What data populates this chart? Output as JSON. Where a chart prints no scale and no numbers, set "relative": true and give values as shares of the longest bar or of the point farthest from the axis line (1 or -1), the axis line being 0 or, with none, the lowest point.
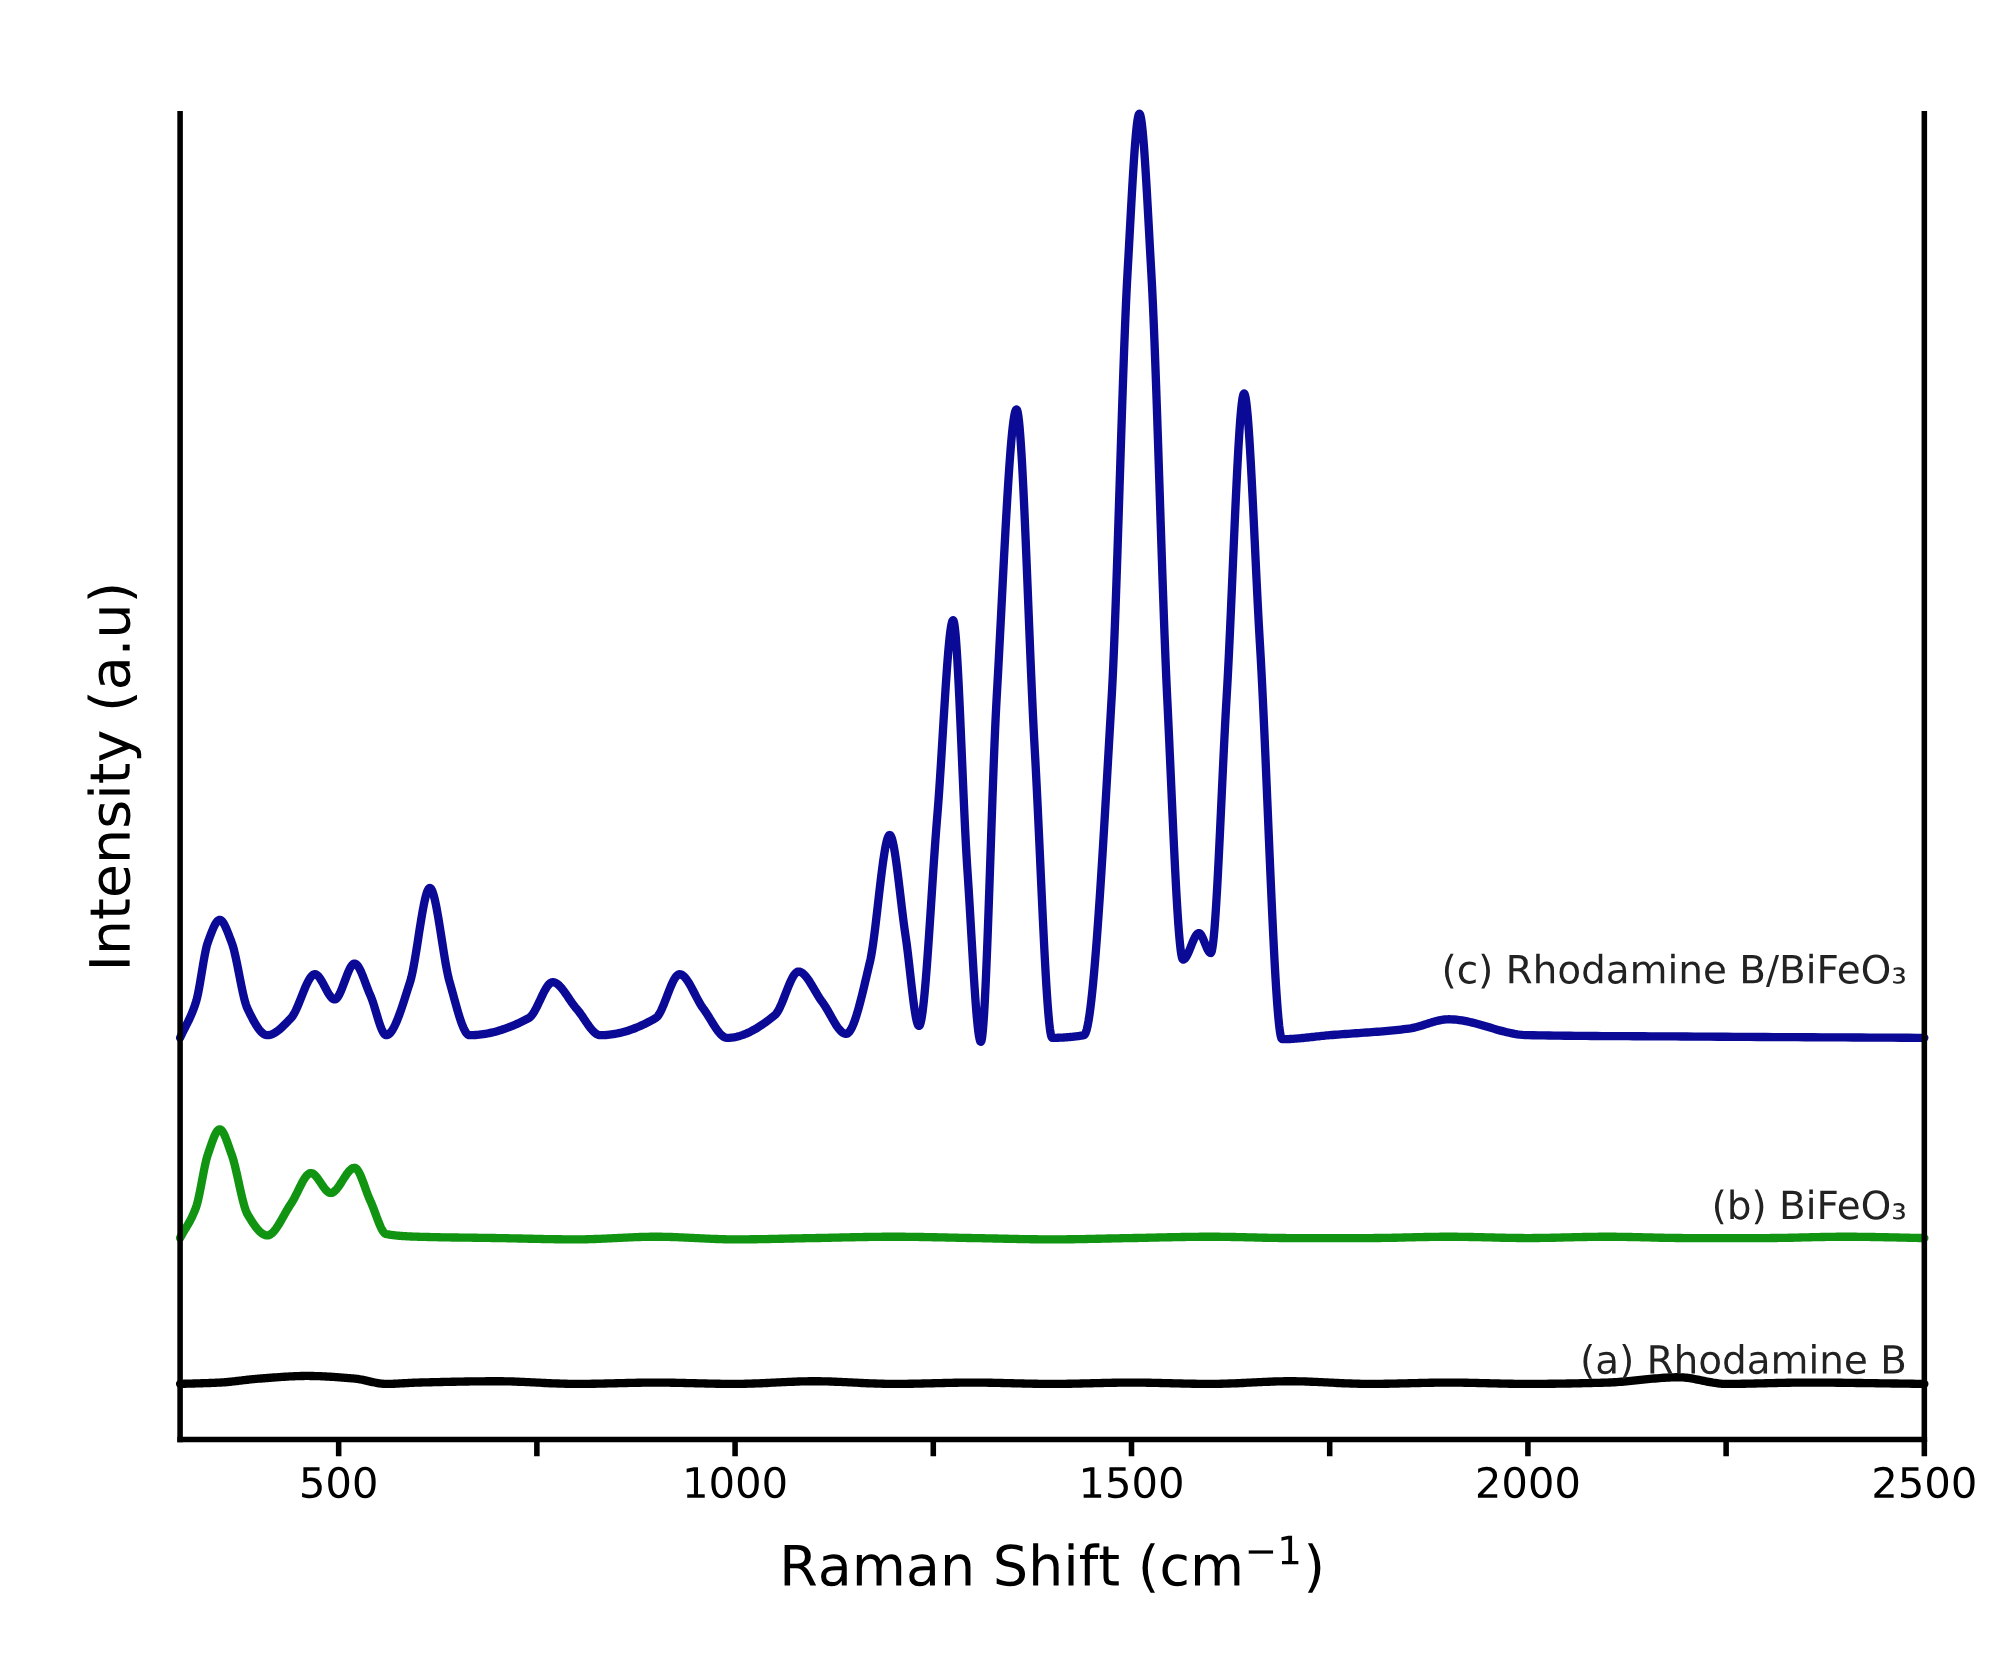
{
  "chart_data": {
    "type": "line",
    "relative": true,
    "xlabel": "Raman Shift (cm$^{−1}$)",
    "ylabel": "Intensity (a.u)",
    "xlim": [
      300,
      2500
    ],
    "xticks": [
      500,
      {
        "value": 750,
        "label": null
      },
      1000,
      {
        "value": 1250,
        "label": null
      },
      1500,
      {
        "value": 1750,
        "label": null
      },
      2000,
      {
        "value": 2250,
        "label": null
      },
      2500
    ],
    "tick_labels": "x",
    "grid": false,
    "legend": false,
    "marker": "none",
    "line_style": "solid",
    "series": [
      {
        "name": "(a) Rhodamine B",
        "color": "#000000",
        "x": [
          300,
          350,
          400,
          460,
          520,
          560,
          600,
          700,
          800,
          900,
          1000,
          1100,
          1200,
          1300,
          1400,
          1500,
          1600,
          1700,
          1800,
          1900,
          2000,
          2100,
          2190,
          2250,
          2350,
          2500
        ],
        "values": [
          0.042,
          0.043,
          0.046,
          0.048,
          0.046,
          0.042,
          0.043,
          0.044,
          0.042,
          0.043,
          0.042,
          0.044,
          0.042,
          0.043,
          0.042,
          0.043,
          0.042,
          0.044,
          0.042,
          0.043,
          0.042,
          0.043,
          0.047,
          0.042,
          0.043,
          0.042
        ]
      },
      {
        "name": "(b) BiFeO₃",
        "color": "#119411",
        "x": [
          300,
          320,
          335,
          350,
          365,
          385,
          410,
          440,
          465,
          490,
          520,
          540,
          560,
          600,
          700,
          800,
          900,
          1000,
          1100,
          1200,
          1300,
          1400,
          1500,
          1600,
          1700,
          1800,
          1900,
          2000,
          2100,
          2200,
          2300,
          2400,
          2500
        ],
        "values": [
          0.152,
          0.175,
          0.215,
          0.234,
          0.215,
          0.17,
          0.154,
          0.178,
          0.201,
          0.186,
          0.205,
          0.18,
          0.155,
          0.153,
          0.152,
          0.151,
          0.153,
          0.151,
          0.152,
          0.153,
          0.152,
          0.151,
          0.152,
          0.153,
          0.152,
          0.152,
          0.153,
          0.152,
          0.153,
          0.152,
          0.152,
          0.153,
          0.152
        ]
      },
      {
        "name": "(c) Rhodamine B/BiFeO₃",
        "color": "#0a0a96",
        "x": [
          300,
          320,
          335,
          350,
          365,
          385,
          410,
          440,
          470,
          495,
          520,
          540,
          560,
          590,
          615,
          640,
          665,
          740,
          770,
          800,
          830,
          900,
          930,
          960,
          990,
          1050,
          1080,
          1110,
          1140,
          1170,
          1195,
          1215,
          1232,
          1255,
          1275,
          1293,
          1310,
          1330,
          1355,
          1378,
          1400,
          1440,
          1475,
          1495,
          1510,
          1525,
          1545,
          1565,
          1585,
          1600,
          1620,
          1642,
          1662,
          1690,
          1750,
          1850,
          1900,
          2000,
          2200,
          2500
        ],
        "values": [
          0.303,
          0.33,
          0.375,
          0.392,
          0.375,
          0.325,
          0.305,
          0.318,
          0.351,
          0.332,
          0.359,
          0.335,
          0.305,
          0.345,
          0.416,
          0.345,
          0.305,
          0.318,
          0.345,
          0.325,
          0.305,
          0.318,
          0.351,
          0.325,
          0.303,
          0.32,
          0.353,
          0.33,
          0.306,
          0.36,
          0.456,
          0.38,
          0.312,
          0.47,
          0.618,
          0.43,
          0.3,
          0.56,
          0.777,
          0.52,
          0.303,
          0.305,
          0.56,
          0.88,
          1.0,
          0.88,
          0.56,
          0.362,
          0.382,
          0.367,
          0.56,
          0.789,
          0.6,
          0.302,
          0.305,
          0.31,
          0.317,
          0.305,
          0.304,
          0.303
        ]
      }
    ]
  }
}
